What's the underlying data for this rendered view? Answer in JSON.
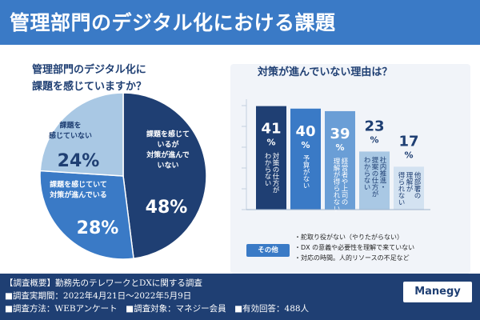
{
  "header": {
    "title": "管理部門のデジタル化における課題"
  },
  "colors": {
    "header_bg": "#3a7ac6",
    "footer_bg": "#1f3f73",
    "pie": [
      "#1f3f73",
      "#3a7ac6",
      "#a9c8e4"
    ],
    "bars": [
      "#1f3f73",
      "#3a7ac6",
      "#6a9ed6",
      "#a9c8e4",
      "#d3e2f1"
    ]
  },
  "left": {
    "heading_line1": "管理部門のデジタル化に",
    "heading_line2": "課題を感じていますか？"
  },
  "right": {
    "heading": "対策が進んでいない理由は？",
    "other_label": "その他",
    "other_items": [
      "・舵取り役がない（やりたがらない）",
      "・DX の意義や必要性を理解で来ていない",
      "・対応の時間。人的リソースの不足など"
    ]
  },
  "footer": {
    "line1": "【調査概要】勤務先のテレワークとDXに関する調査",
    "line2": "■調査実期間：2022年4月21日～2022年5月9日",
    "line3": "■調査方法：WEBアンケート　■調査対象：マネジー会員　■有効回答：488人",
    "brand": "Manegy"
  },
  "chart_data": [
    {
      "type": "pie",
      "title": "管理部門のデジタル化に課題を感じていますか？",
      "slices": [
        {
          "label_lines": [
            "課題を感じて",
            "いるが",
            "対策が進んで",
            "いない"
          ],
          "value": 48
        },
        {
          "label_lines": [
            "課題を感じていて",
            "対策が進んでいる"
          ],
          "value": 28
        },
        {
          "label_lines": [
            "課題を",
            "感じていない"
          ],
          "value": 24
        }
      ],
      "unit": "%"
    },
    {
      "type": "bar",
      "title": "対策が進んでいない理由は？",
      "categories": [
        [
          "対策の仕方が",
          "わからない"
        ],
        [
          "予算がない"
        ],
        [
          "経営者や上司の",
          "理解が得られない"
        ],
        [
          "社内推進・",
          "提案の仕方が",
          "わからない"
        ],
        [
          "他部署の",
          "理解が",
          "得られない"
        ]
      ],
      "values": [
        41,
        40,
        39,
        23,
        17
      ],
      "unit": "%",
      "ylim": [
        0,
        45
      ]
    }
  ]
}
